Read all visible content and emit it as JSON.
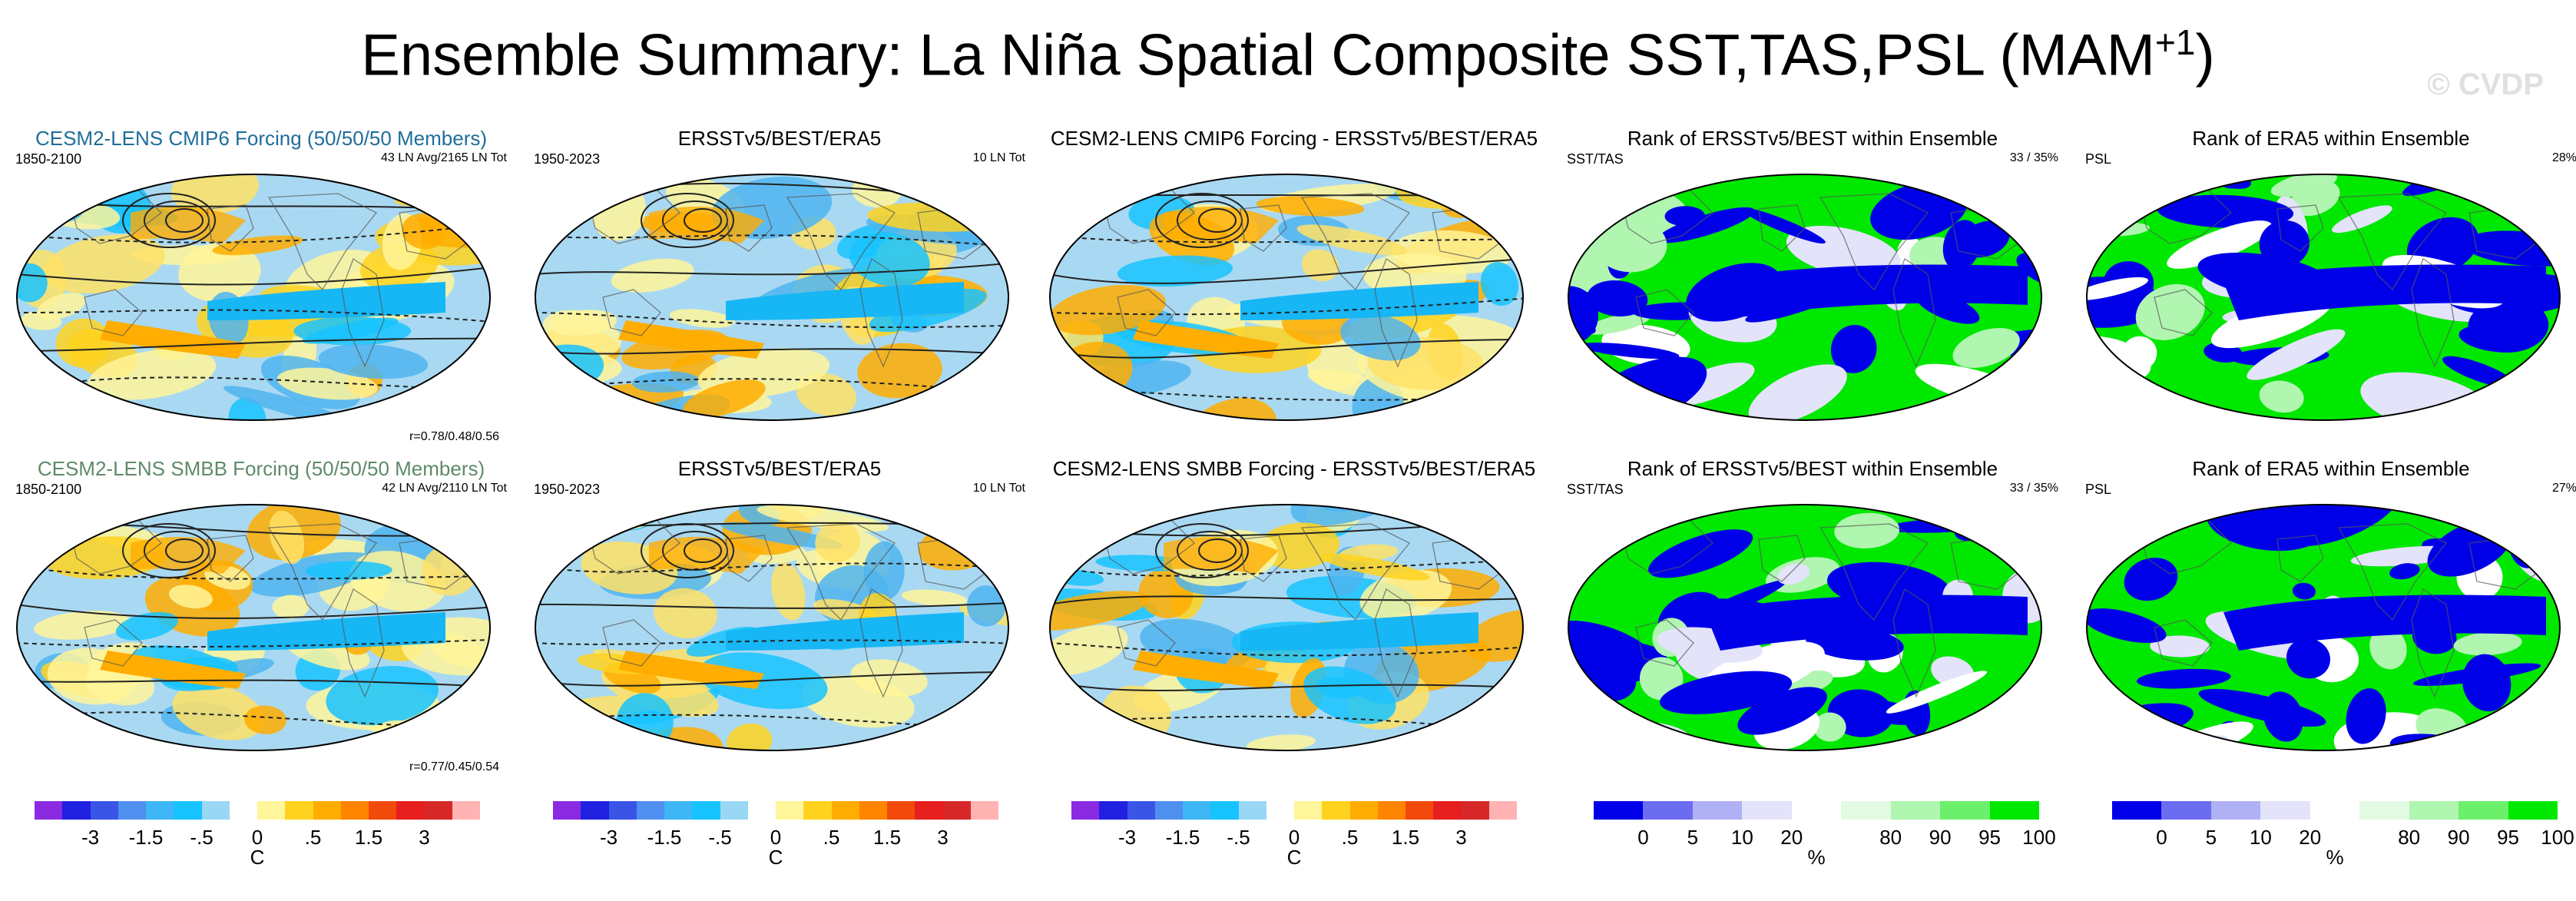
{
  "title": "Ensemble Summary: La Niña Spatial Composite SST,TAS,PSL (MAM",
  "title_sup": "+1",
  "title_end": ")",
  "watermark": "© CVDP",
  "chart_data": [
    {
      "type": "heatmap",
      "title": "CESM2-LENS CMIP6 Forcing (50/50/50 Members)",
      "left_text": "1850-2100",
      "right_text": "43 LN Avg/2165 LN Tot",
      "bottom_text": "r=0.78/0.48/0.56"
    },
    {
      "type": "heatmap",
      "title": "ERSSTv5/BEST/ERA5",
      "left_text": "1950-2023",
      "right_text": "10 LN Tot"
    },
    {
      "type": "heatmap",
      "title": "CESM2-LENS CMIP6 Forcing - ERSSTv5/BEST/ERA5"
    },
    {
      "type": "heatmap",
      "title": "Rank of ERSSTv5/BEST within Ensemble",
      "left_text": "SST/TAS",
      "right_text": "33 /  35%"
    },
    {
      "type": "heatmap",
      "title": "Rank of ERA5 within Ensemble",
      "left_text": "PSL",
      "right_text": "28%"
    },
    {
      "type": "heatmap",
      "title": "CESM2-LENS SMBB Forcing (50/50/50 Members)",
      "left_text": "1850-2100",
      "right_text": "42 LN Avg/2110 LN Tot",
      "bottom_text": "r=0.77/0.45/0.54"
    },
    {
      "type": "heatmap",
      "title": "ERSSTv5/BEST/ERA5",
      "left_text": "1950-2023",
      "right_text": "10 LN Tot"
    },
    {
      "type": "heatmap",
      "title": "CESM2-LENS SMBB Forcing - ERSSTv5/BEST/ERA5"
    },
    {
      "type": "heatmap",
      "title": "Rank of ERSSTv5/BEST within Ensemble",
      "left_text": "SST/TAS",
      "right_text": "33 /  35%"
    },
    {
      "type": "heatmap",
      "title": "Rank of ERA5 within Ensemble",
      "left_text": "PSL",
      "right_text": "27%"
    }
  ],
  "colorbars": {
    "temperature": {
      "labels": [
        "-3",
        "-1.5",
        "-.5",
        "0",
        ".5",
        "1.5",
        "3"
      ],
      "label_slots": [
        2,
        4,
        6,
        8,
        10,
        12,
        14
      ],
      "unit": "C",
      "colors": [
        "#8a2be2",
        "#2020e0",
        "#3a55e6",
        "#4f8ff0",
        "#3fb6f5",
        "#17c3ff",
        "#9ad7f5",
        "#ffffff",
        "#fff59a",
        "#ffd21f",
        "#ffad00",
        "#ff8400",
        "#f24a0a",
        "#e61e1e",
        "#d62828",
        "#ffb3b3"
      ]
    },
    "rank": {
      "labels": [
        "0",
        "5",
        "10",
        "20",
        "80",
        "90",
        "95",
        "100"
      ],
      "label_slots": [
        1,
        2,
        3,
        4,
        6,
        7,
        8,
        9
      ],
      "unit": "%",
      "colors": [
        "#0000e8",
        "#6c6cf0",
        "#b0b0f5",
        "#e3e3fa",
        "#ffffff",
        "#e3fae3",
        "#b0f5b0",
        "#6cf06c",
        "#00e800"
      ]
    }
  }
}
